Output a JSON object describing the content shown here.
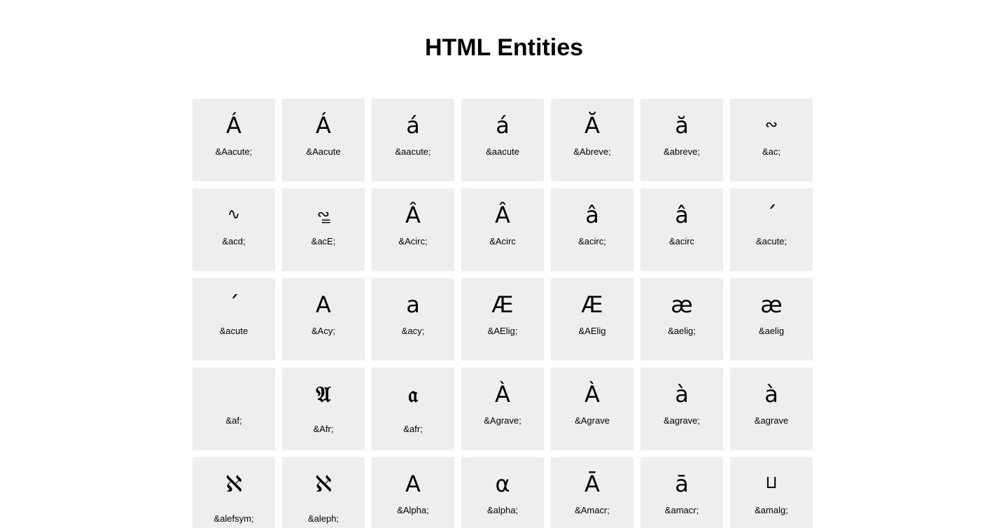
{
  "page": {
    "title": "HTML Entities"
  },
  "colors": {
    "tile_background": "#eeeeee",
    "page_background": "#ffffff",
    "text": "#000000"
  },
  "entities": [
    {
      "glyph": "Á",
      "label": "&Aacute;"
    },
    {
      "glyph": "Á",
      "label": "&Aacute"
    },
    {
      "glyph": "á",
      "label": "&aacute;"
    },
    {
      "glyph": "á",
      "label": "&aacute"
    },
    {
      "glyph": "Ă",
      "label": "&Abreve;"
    },
    {
      "glyph": "ă",
      "label": "&abreve;"
    },
    {
      "glyph": "∾",
      "label": "&ac;"
    },
    {
      "glyph": "∿",
      "label": "&acd;"
    },
    {
      "glyph": "∾̳",
      "label": "&acE;"
    },
    {
      "glyph": "Â",
      "label": "&Acirc;"
    },
    {
      "glyph": "Â",
      "label": "&Acirc"
    },
    {
      "glyph": "â",
      "label": "&acirc;"
    },
    {
      "glyph": "â",
      "label": "&acirc"
    },
    {
      "glyph": "´",
      "label": "&acute;"
    },
    {
      "glyph": "´",
      "label": "&acute"
    },
    {
      "glyph": "А",
      "label": "&Acy;"
    },
    {
      "glyph": "а",
      "label": "&acy;"
    },
    {
      "glyph": "Æ",
      "label": "&AElig;"
    },
    {
      "glyph": "Æ",
      "label": "&AElig"
    },
    {
      "glyph": "æ",
      "label": "&aelig;"
    },
    {
      "glyph": "æ",
      "label": "&aelig"
    },
    {
      "glyph": "",
      "label": "&af;"
    },
    {
      "glyph": "𝔄",
      "label": "&Afr;"
    },
    {
      "glyph": "𝔞",
      "label": "&afr;"
    },
    {
      "glyph": "À",
      "label": "&Agrave;"
    },
    {
      "glyph": "À",
      "label": "&Agrave"
    },
    {
      "glyph": "à",
      "label": "&agrave;"
    },
    {
      "glyph": "à",
      "label": "&agrave"
    },
    {
      "glyph": "ℵ",
      "label": "&alefsym;"
    },
    {
      "glyph": "ℵ",
      "label": "&aleph;"
    },
    {
      "glyph": "Α",
      "label": "&Alpha;"
    },
    {
      "glyph": "α",
      "label": "&alpha;"
    },
    {
      "glyph": "Ā",
      "label": "&Amacr;"
    },
    {
      "glyph": "ā",
      "label": "&amacr;"
    },
    {
      "glyph": "⨿",
      "label": "&amalg;"
    }
  ]
}
